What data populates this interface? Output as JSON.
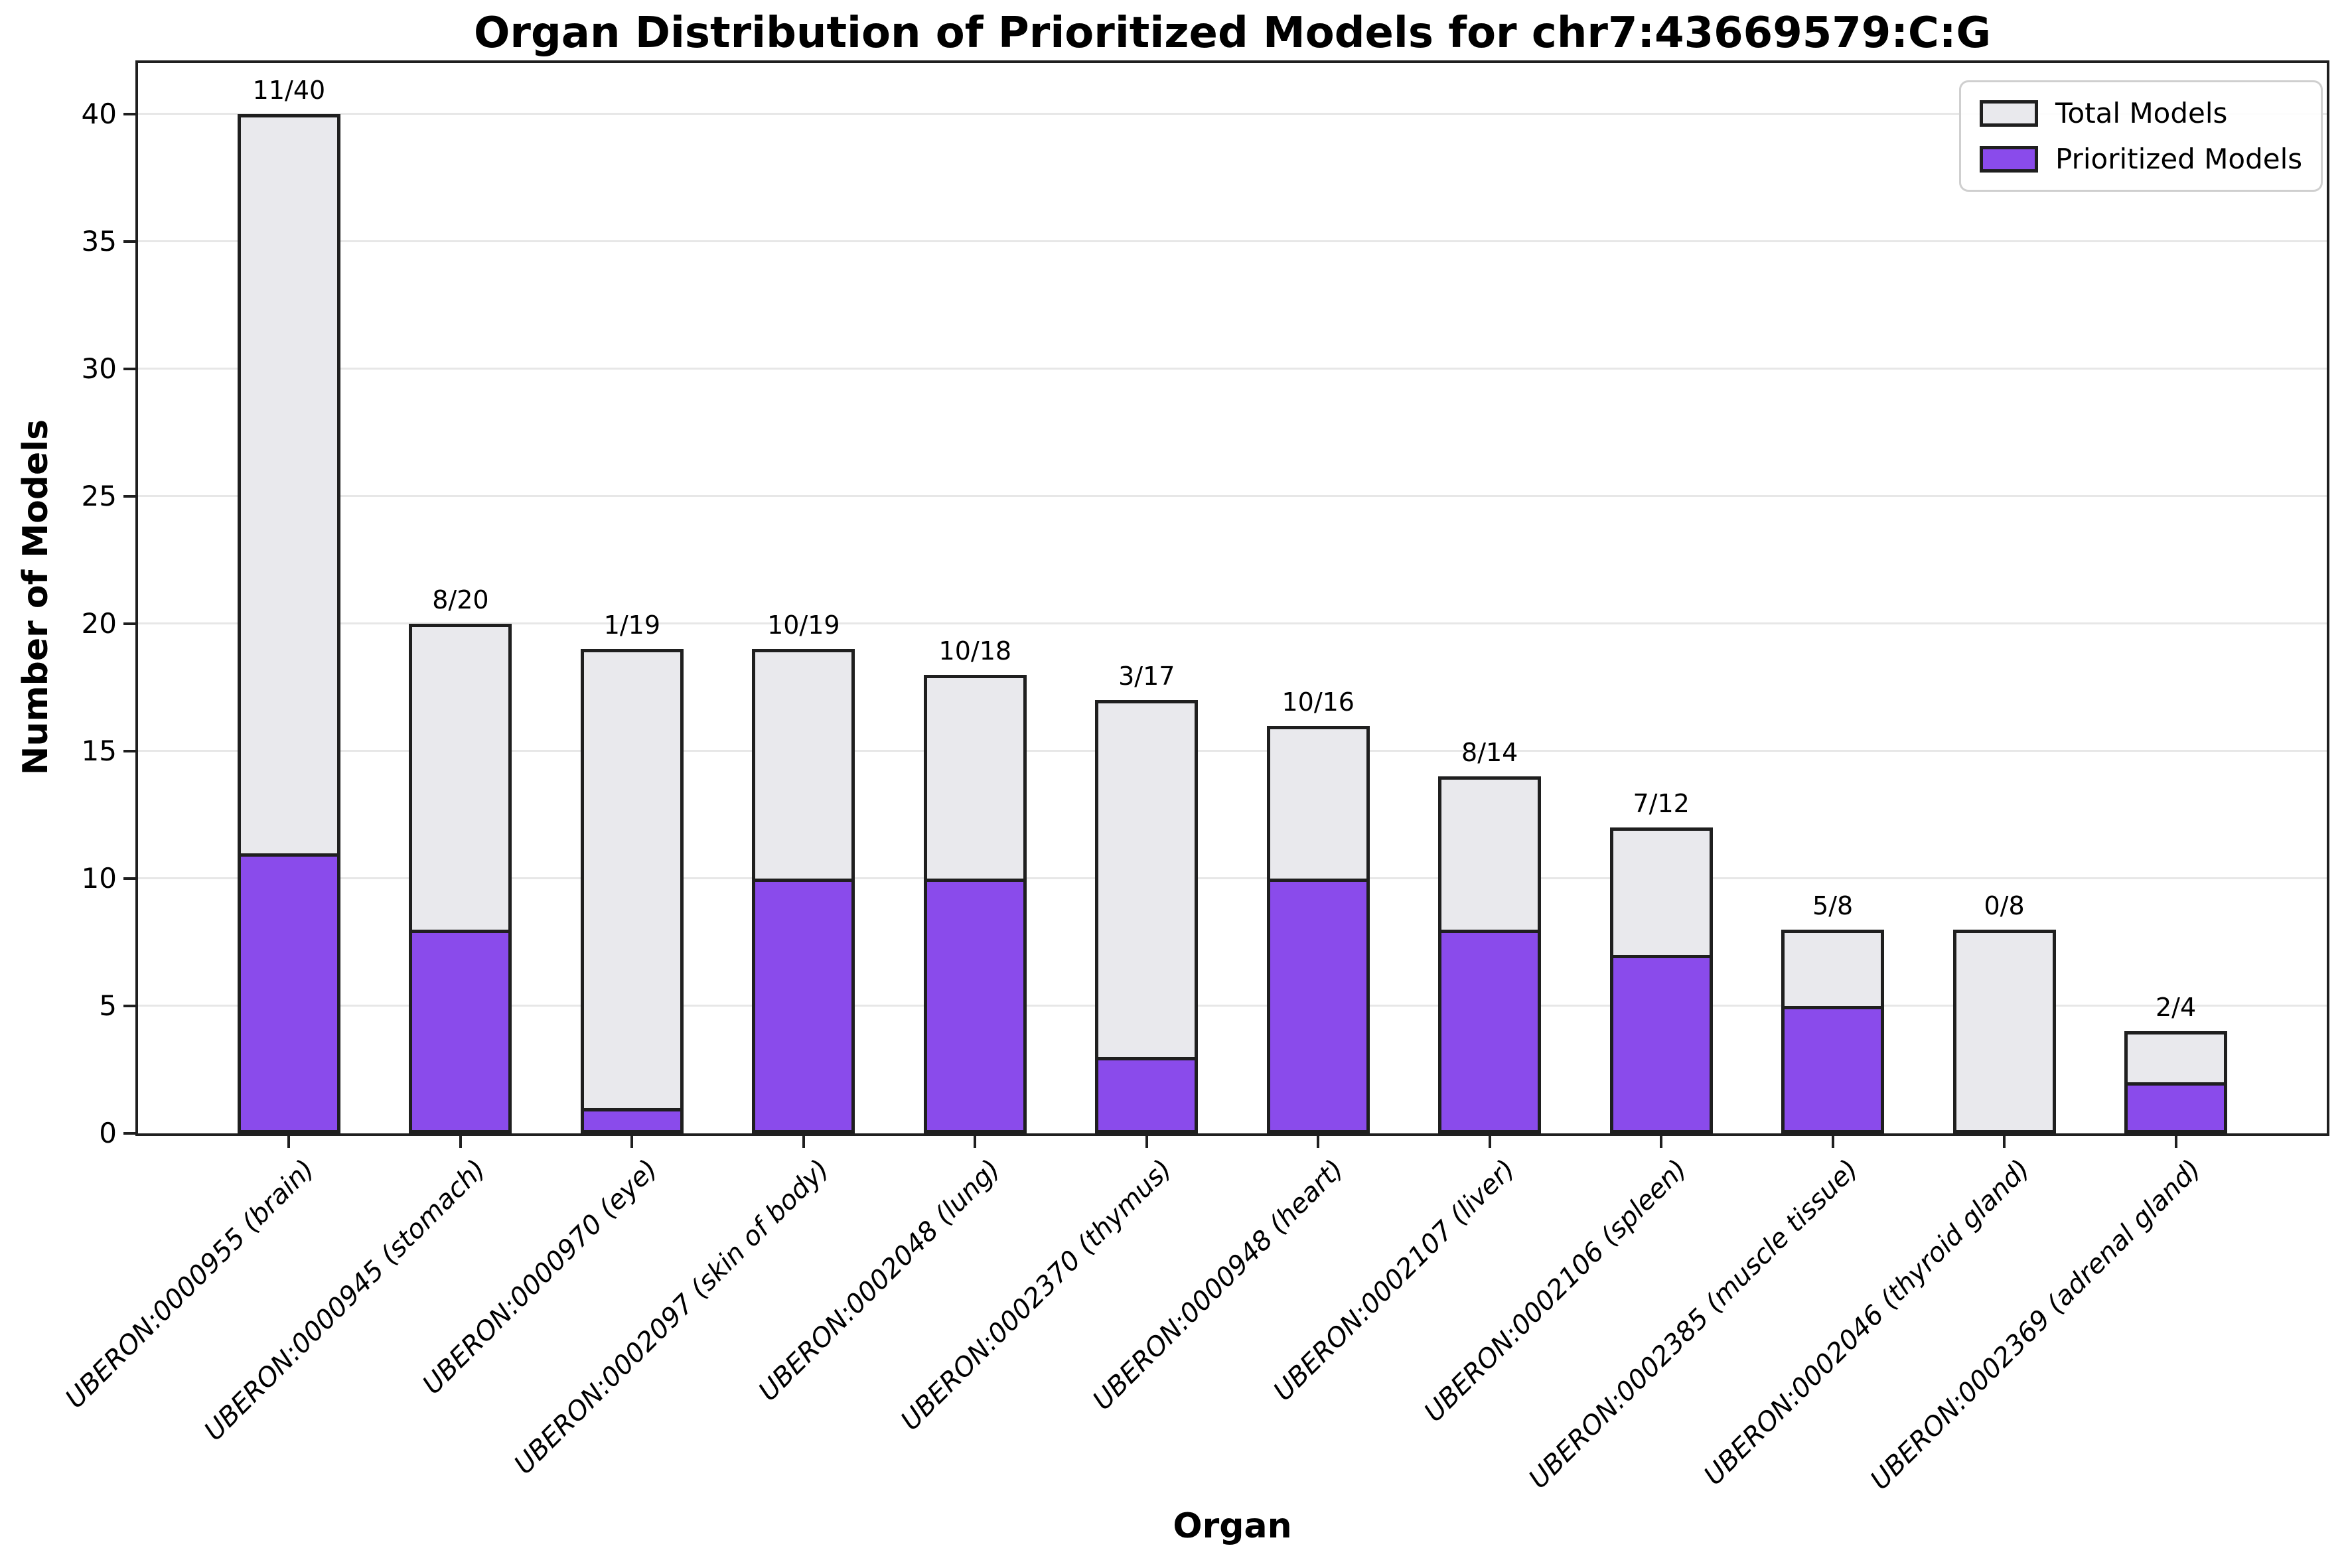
{
  "title": "Organ Distribution of Prioritized Models for chr7:43669579:C:G",
  "axes": {
    "x_label": "Organ",
    "y_label": "Number of Models",
    "y_ticks": [
      0,
      5,
      10,
      15,
      20,
      25,
      30,
      35,
      40
    ]
  },
  "legend": [
    {
      "label": "Total Models",
      "color_key": "total"
    },
    {
      "label": "Prioritized Models",
      "color_key": "prioritized"
    }
  ],
  "colors": {
    "total": "#e9e9ed",
    "prioritized": "#8a4beb",
    "edge": "#1f1f1f",
    "grid": "#e7e7e7"
  },
  "chart_data": {
    "type": "bar",
    "title": "Organ Distribution of Prioritized Models for chr7:43669579:C:G",
    "xlabel": "Organ",
    "ylabel": "Number of Models",
    "ylim": [
      0,
      42
    ],
    "yticks": [
      0,
      5,
      10,
      15,
      20,
      25,
      30,
      35,
      40
    ],
    "grid": true,
    "legend_position": "upper right",
    "bar_style": "overlaid (prioritized drawn over total)",
    "categories": [
      "UBERON:0000955 (brain)",
      "UBERON:0000945 (stomach)",
      "UBERON:0000970 (eye)",
      "UBERON:0002097 (skin of body)",
      "UBERON:0002048 (lung)",
      "UBERON:0002370 (thymus)",
      "UBERON:0000948 (heart)",
      "UBERON:0002107 (liver)",
      "UBERON:0002106 (spleen)",
      "UBERON:0002385 (muscle tissue)",
      "UBERON:0002046 (thyroid gland)",
      "UBERON:0002369 (adrenal gland)"
    ],
    "series": [
      {
        "name": "Total Models",
        "color": "#e9e9ed",
        "values": [
          40,
          20,
          19,
          19,
          18,
          17,
          16,
          14,
          12,
          8,
          8,
          4
        ]
      },
      {
        "name": "Prioritized Models",
        "color": "#8a4beb",
        "values": [
          11,
          8,
          1,
          10,
          10,
          3,
          10,
          8,
          7,
          5,
          0,
          2
        ]
      }
    ],
    "bar_annotations": [
      "11/40",
      "8/20",
      "1/19",
      "10/19",
      "10/18",
      "3/17",
      "10/16",
      "8/14",
      "7/12",
      "5/8",
      "0/8",
      "2/4"
    ]
  }
}
